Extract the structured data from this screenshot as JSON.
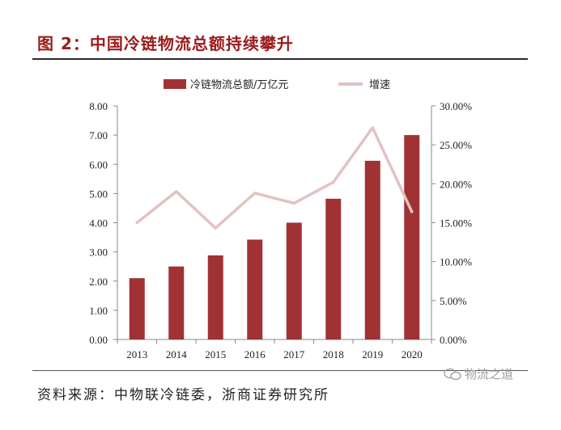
{
  "figure": {
    "title": "图 2：中国冷链物流总额持续攀升",
    "source": "资料来源：中物联冷链委，浙商证券研究所",
    "watermark": "物流之道"
  },
  "colors": {
    "bar": "#a03234",
    "line": "#e2c2c2",
    "title": "#9b1c1c",
    "axis": "#888888"
  },
  "chart_data": {
    "type": "bar",
    "categories": [
      "2013",
      "2014",
      "2015",
      "2016",
      "2017",
      "2018",
      "2019",
      "2020"
    ],
    "series": [
      {
        "name": "冷链物流总额/万亿元",
        "type": "bar",
        "axis": "left",
        "values": [
          2.1,
          2.5,
          2.88,
          3.42,
          4.0,
          4.82,
          6.12,
          7.0
        ]
      },
      {
        "name": "增速",
        "type": "line",
        "axis": "right",
        "values": [
          15.0,
          19.0,
          14.3,
          18.8,
          17.5,
          20.2,
          27.2,
          16.4
        ]
      }
    ],
    "y_left": {
      "ylim": [
        0,
        8
      ],
      "ticks": [
        "0.00",
        "1.00",
        "2.00",
        "3.00",
        "4.00",
        "5.00",
        "6.00",
        "7.00",
        "8.00"
      ]
    },
    "y_right": {
      "ylim": [
        0,
        30
      ],
      "ticks": [
        "0.00%",
        "5.00%",
        "10.00%",
        "15.00%",
        "20.00%",
        "25.00%",
        "30.00%"
      ]
    },
    "legend_position": "top-center",
    "grid": false
  }
}
